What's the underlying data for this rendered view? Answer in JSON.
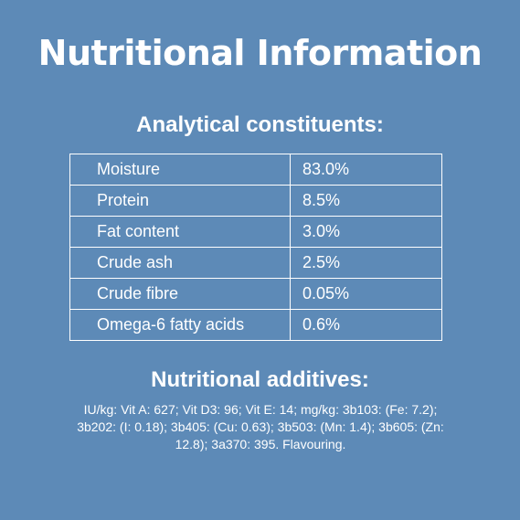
{
  "header": {
    "title": "Nutritional Information"
  },
  "constituents": {
    "heading": "Analytical constituents:",
    "rows": [
      [
        "Moisture",
        "83.0%"
      ],
      [
        "Protein",
        "8.5%"
      ],
      [
        "Fat content",
        "3.0%"
      ],
      [
        "Crude ash",
        "2.5%"
      ],
      [
        "Crude fibre",
        "0.05%"
      ],
      [
        "Omega-6 fatty acids",
        "0.6%"
      ]
    ]
  },
  "additives": {
    "heading": "Nutritional additives:",
    "text": "IU/kg: Vit A: 627; Vit D3: 96; Vit E: 14; mg/kg: 3b103: (Fe: 7.2); 3b202: (I: 0.18); 3b405: (Cu: 0.63); 3b503: (Mn: 1.4); 3b605: (Zn: 12.8); 3a370: 395. Flavouring."
  }
}
